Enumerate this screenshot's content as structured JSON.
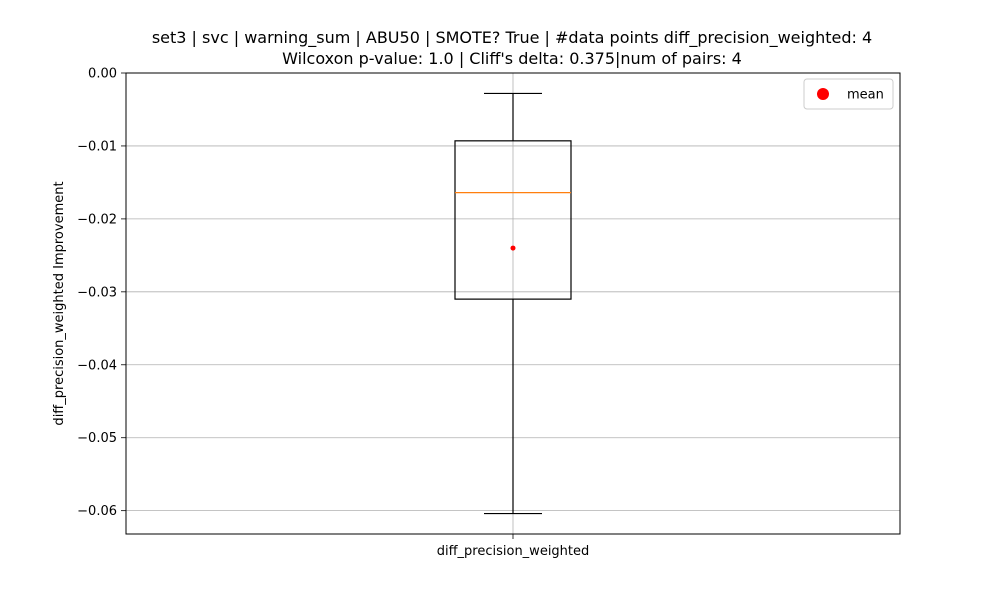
{
  "chart_data": {
    "type": "box",
    "title_line1": "set3 | svc | warning_sum | ABU50 | SMOTE? True | #data points diff_precision_weighted: 4",
    "title_line2": "Wilcoxon p-value: 1.0 | Cliff's delta: 0.375|num of pairs: 4",
    "xlabel": "",
    "ylabel": "diff_precision_weighted Improvement",
    "categories": [
      "diff_precision_weighted"
    ],
    "ylim": [
      -0.0632,
      0.0
    ],
    "yticks": [
      0.0,
      -0.01,
      -0.02,
      -0.03,
      -0.04,
      -0.05,
      -0.06
    ],
    "ytick_labels": [
      "0.00",
      "−0.01",
      "−0.02",
      "−0.03",
      "−0.04",
      "−0.05",
      "−0.06"
    ],
    "grid": true,
    "boxes": [
      {
        "name": "diff_precision_weighted",
        "whisker_low": -0.0604,
        "q1": -0.031,
        "median": -0.0164,
        "q3": -0.0093,
        "whisker_high": -0.0028,
        "mean": -0.024
      }
    ],
    "legend": {
      "position": "top-right",
      "entries": [
        {
          "label": "mean",
          "marker": "circle",
          "color": "#ff0000"
        }
      ]
    },
    "colors": {
      "box": "#000000",
      "median": "#ff7f0e",
      "mean": "#ff0000",
      "grid": "#b0b0b0"
    }
  }
}
